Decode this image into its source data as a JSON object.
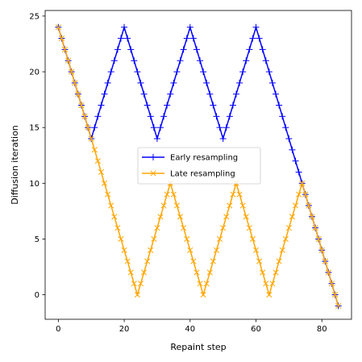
{
  "chart_data": {
    "type": "line",
    "xlabel": "Repaint step",
    "ylabel": "Diffusion iteration",
    "xlim": [
      -4,
      89
    ],
    "ylim": [
      -2.2,
      25.5
    ],
    "xticks": [
      0,
      20,
      40,
      60,
      80
    ],
    "yticks": [
      0,
      5,
      10,
      15,
      20,
      25
    ],
    "grid": false,
    "legend_position": "center",
    "series": [
      {
        "name": "Early resampling",
        "color": "#0000ff",
        "marker": "plus",
        "x": [
          0,
          1,
          2,
          3,
          4,
          5,
          6,
          7,
          8,
          9,
          10,
          11,
          12,
          13,
          14,
          15,
          16,
          17,
          18,
          19,
          20,
          21,
          22,
          23,
          24,
          25,
          26,
          27,
          28,
          29,
          30,
          31,
          32,
          33,
          34,
          35,
          36,
          37,
          38,
          39,
          40,
          41,
          42,
          43,
          44,
          45,
          46,
          47,
          48,
          49,
          50,
          51,
          52,
          53,
          54,
          55,
          56,
          57,
          58,
          59,
          60,
          61,
          62,
          63,
          64,
          65,
          66,
          67,
          68,
          69,
          70,
          71,
          72,
          73,
          74,
          75,
          76,
          77,
          78,
          79,
          80,
          81,
          82,
          83,
          84,
          85
        ],
        "y": [
          24,
          23,
          22,
          21,
          20,
          19,
          18,
          17,
          16,
          15,
          14,
          15,
          16,
          17,
          18,
          19,
          20,
          21,
          22,
          23,
          24,
          23,
          22,
          21,
          20,
          19,
          18,
          17,
          16,
          15,
          14,
          15,
          16,
          17,
          18,
          19,
          20,
          21,
          22,
          23,
          24,
          23,
          22,
          21,
          20,
          19,
          18,
          17,
          16,
          15,
          14,
          15,
          16,
          17,
          18,
          19,
          20,
          21,
          22,
          23,
          24,
          23,
          22,
          21,
          20,
          19,
          18,
          17,
          16,
          15,
          14,
          13,
          12,
          11,
          10,
          9,
          8,
          7,
          6,
          5,
          4,
          3,
          2,
          1,
          0,
          -1
        ]
      },
      {
        "name": "Late resampling",
        "color": "#ffa500",
        "marker": "x",
        "x": [
          0,
          1,
          2,
          3,
          4,
          5,
          6,
          7,
          8,
          9,
          10,
          11,
          12,
          13,
          14,
          15,
          16,
          17,
          18,
          19,
          20,
          21,
          22,
          23,
          24,
          25,
          26,
          27,
          28,
          29,
          30,
          31,
          32,
          33,
          34,
          35,
          36,
          37,
          38,
          39,
          40,
          41,
          42,
          43,
          44,
          45,
          46,
          47,
          48,
          49,
          50,
          51,
          52,
          53,
          54,
          55,
          56,
          57,
          58,
          59,
          60,
          61,
          62,
          63,
          64,
          65,
          66,
          67,
          68,
          69,
          70,
          71,
          72,
          73,
          74,
          75,
          76,
          77,
          78,
          79,
          80,
          81,
          82,
          83,
          84,
          85
        ],
        "y": [
          24,
          23,
          22,
          21,
          20,
          19,
          18,
          17,
          16,
          15,
          14,
          13,
          12,
          11,
          10,
          9,
          8,
          7,
          6,
          5,
          4,
          3,
          2,
          1,
          0,
          1,
          2,
          3,
          4,
          5,
          6,
          7,
          8,
          9,
          10,
          9,
          8,
          7,
          6,
          5,
          4,
          3,
          2,
          1,
          0,
          1,
          2,
          3,
          4,
          5,
          6,
          7,
          8,
          9,
          10,
          9,
          8,
          7,
          6,
          5,
          4,
          3,
          2,
          1,
          0,
          1,
          2,
          3,
          4,
          5,
          6,
          7,
          8,
          9,
          10,
          9,
          8,
          7,
          6,
          5,
          4,
          3,
          2,
          1,
          0,
          -1
        ]
      }
    ]
  }
}
